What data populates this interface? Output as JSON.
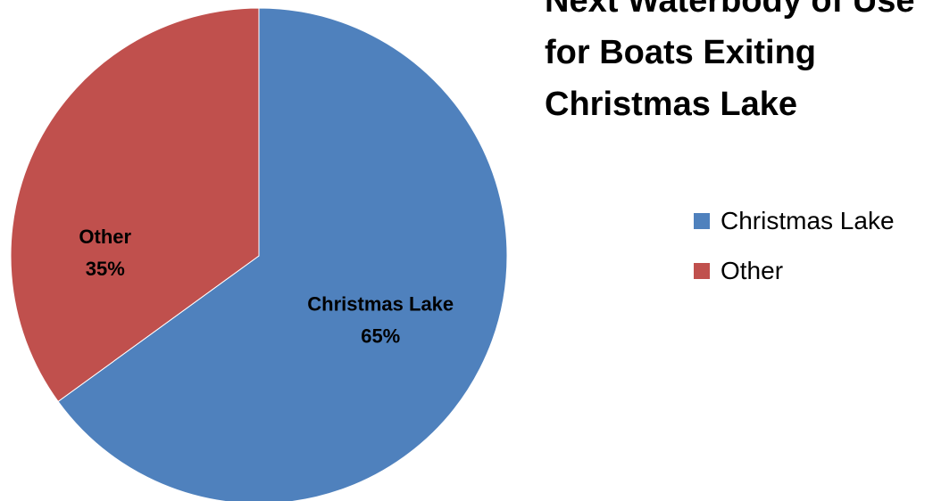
{
  "chart_data": {
    "type": "pie",
    "title": "Next Waterbody of Use for Boats Exiting Christmas Lake",
    "categories": [
      "Christmas Lake",
      "Other"
    ],
    "values": [
      65,
      35
    ],
    "value_labels": [
      "65%",
      "35%"
    ],
    "colors": [
      "#4f81bd",
      "#c0504d"
    ],
    "legend_position": "right"
  }
}
